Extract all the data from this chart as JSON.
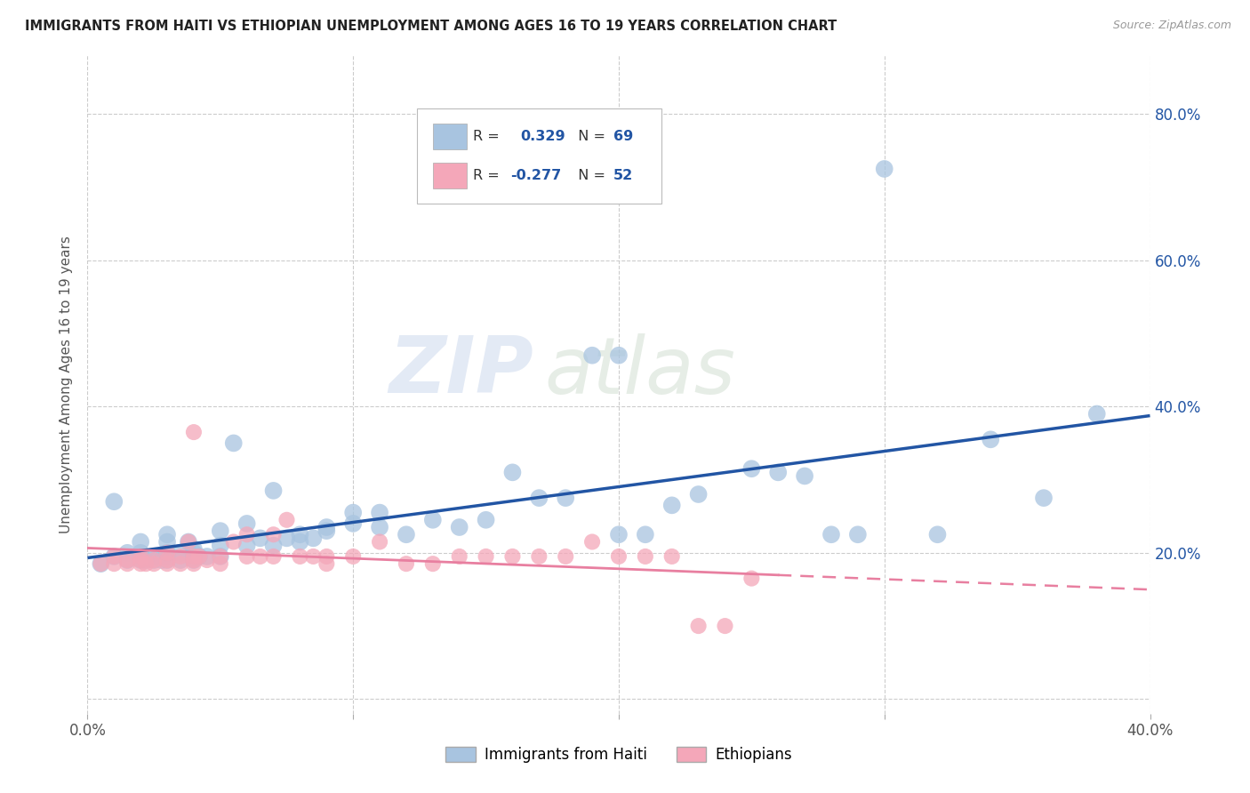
{
  "title": "IMMIGRANTS FROM HAITI VS ETHIOPIAN UNEMPLOYMENT AMONG AGES 16 TO 19 YEARS CORRELATION CHART",
  "source": "Source: ZipAtlas.com",
  "ylabel": "Unemployment Among Ages 16 to 19 years",
  "xlim": [
    0.0,
    0.4
  ],
  "ylim": [
    -0.02,
    0.88
  ],
  "yticks": [
    0.0,
    0.2,
    0.4,
    0.6,
    0.8
  ],
  "ytick_labels_right": [
    "",
    "20.0%",
    "40.0%",
    "60.0%",
    "80.0%"
  ],
  "xticks": [
    0.0,
    0.1,
    0.2,
    0.3,
    0.4
  ],
  "xtick_labels": [
    "0.0%",
    "",
    "",
    "",
    "40.0%"
  ],
  "haiti_color": "#a8c4e0",
  "ethiopia_color": "#f4a7b9",
  "haiti_line_color": "#2255a4",
  "ethiopia_line_color": "#e87fa0",
  "legend_haiti_label": "Immigrants from Haiti",
  "legend_ethiopia_label": "Ethiopians",
  "haiti_R": "0.329",
  "haiti_N": "69",
  "ethiopia_R": "-0.277",
  "ethiopia_N": "52",
  "watermark_zip": "ZIP",
  "watermark_atlas": "atlas",
  "haiti_scatter_x": [
    0.005,
    0.01,
    0.01,
    0.015,
    0.015,
    0.02,
    0.02,
    0.02,
    0.02,
    0.022,
    0.025,
    0.025,
    0.028,
    0.03,
    0.03,
    0.03,
    0.03,
    0.03,
    0.035,
    0.035,
    0.038,
    0.04,
    0.04,
    0.04,
    0.04,
    0.042,
    0.045,
    0.05,
    0.05,
    0.05,
    0.055,
    0.06,
    0.06,
    0.065,
    0.07,
    0.07,
    0.075,
    0.08,
    0.08,
    0.085,
    0.09,
    0.09,
    0.1,
    0.1,
    0.11,
    0.11,
    0.12,
    0.13,
    0.14,
    0.15,
    0.16,
    0.17,
    0.18,
    0.19,
    0.2,
    0.21,
    0.22,
    0.23,
    0.25,
    0.27,
    0.29,
    0.3,
    0.32,
    0.34,
    0.36,
    0.38,
    0.2,
    0.26,
    0.28
  ],
  "haiti_scatter_y": [
    0.185,
    0.195,
    0.27,
    0.19,
    0.2,
    0.19,
    0.195,
    0.2,
    0.215,
    0.19,
    0.19,
    0.195,
    0.19,
    0.19,
    0.195,
    0.2,
    0.215,
    0.225,
    0.19,
    0.2,
    0.215,
    0.19,
    0.195,
    0.2,
    0.205,
    0.195,
    0.195,
    0.195,
    0.21,
    0.23,
    0.35,
    0.21,
    0.24,
    0.22,
    0.21,
    0.285,
    0.22,
    0.215,
    0.225,
    0.22,
    0.23,
    0.235,
    0.24,
    0.255,
    0.235,
    0.255,
    0.225,
    0.245,
    0.235,
    0.245,
    0.31,
    0.275,
    0.275,
    0.47,
    0.225,
    0.225,
    0.265,
    0.28,
    0.315,
    0.305,
    0.225,
    0.725,
    0.225,
    0.355,
    0.275,
    0.39,
    0.47,
    0.31,
    0.225
  ],
  "ethiopia_scatter_x": [
    0.005,
    0.01,
    0.01,
    0.015,
    0.015,
    0.02,
    0.02,
    0.02,
    0.022,
    0.025,
    0.025,
    0.03,
    0.03,
    0.03,
    0.035,
    0.035,
    0.038,
    0.04,
    0.04,
    0.04,
    0.04,
    0.042,
    0.045,
    0.05,
    0.05,
    0.055,
    0.06,
    0.06,
    0.065,
    0.07,
    0.07,
    0.075,
    0.08,
    0.085,
    0.09,
    0.09,
    0.1,
    0.11,
    0.12,
    0.13,
    0.14,
    0.15,
    0.16,
    0.17,
    0.18,
    0.19,
    0.2,
    0.21,
    0.22,
    0.23,
    0.24,
    0.25
  ],
  "ethiopia_scatter_y": [
    0.185,
    0.185,
    0.195,
    0.185,
    0.19,
    0.185,
    0.19,
    0.195,
    0.185,
    0.185,
    0.19,
    0.185,
    0.19,
    0.2,
    0.185,
    0.195,
    0.215,
    0.185,
    0.19,
    0.195,
    0.365,
    0.195,
    0.19,
    0.185,
    0.195,
    0.215,
    0.195,
    0.225,
    0.195,
    0.195,
    0.225,
    0.245,
    0.195,
    0.195,
    0.185,
    0.195,
    0.195,
    0.215,
    0.185,
    0.185,
    0.195,
    0.195,
    0.195,
    0.195,
    0.195,
    0.215,
    0.195,
    0.195,
    0.195,
    0.1,
    0.1,
    0.165
  ]
}
